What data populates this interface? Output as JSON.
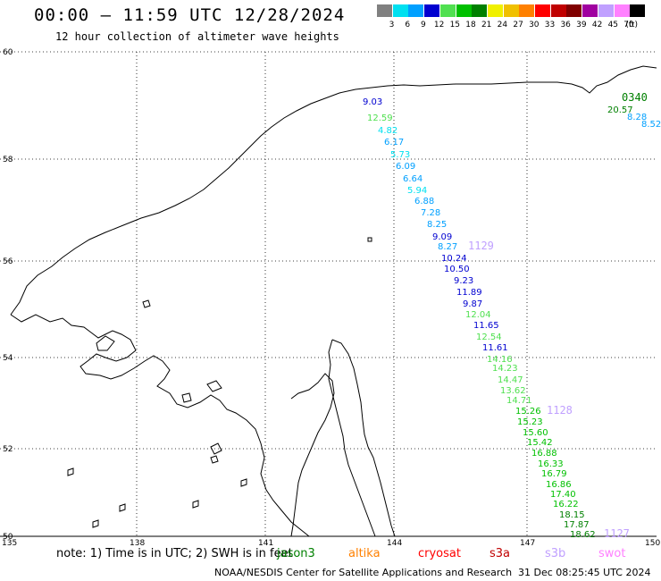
{
  "title": "00:00 — 11:59 UTC 12/28/2024",
  "subtitle": "12 hour collection of altimeter wave heights",
  "color_scale": {
    "unit": "(ft)",
    "bins": [
      {
        "label": "3",
        "color": "#808080"
      },
      {
        "label": "6",
        "color": "#00e0f0"
      },
      {
        "label": "9",
        "color": "#00a0ff"
      },
      {
        "label": "12",
        "color": "#0000d0"
      },
      {
        "label": "15",
        "color": "#50e050"
      },
      {
        "label": "18",
        "color": "#00c000"
      },
      {
        "label": "21",
        "color": "#008000"
      },
      {
        "label": "24",
        "color": "#f0f000"
      },
      {
        "label": "27",
        "color": "#f0c000"
      },
      {
        "label": "30",
        "color": "#ff8000"
      },
      {
        "label": "33",
        "color": "#ff0000"
      },
      {
        "label": "36",
        "color": "#c00000"
      },
      {
        "label": "39",
        "color": "#800000"
      },
      {
        "label": "42",
        "color": "#a000a0"
      },
      {
        "label": "45",
        "color": "#c0a0ff"
      },
      {
        "label": "70",
        "color": "#ff80ff"
      },
      {
        "label": "",
        "color": "#000000"
      }
    ]
  },
  "axes": {
    "lat_labels": [
      "60",
      "58",
      "56",
      "54",
      "52",
      "50"
    ],
    "lon_labels": [
      "135",
      "138",
      "141",
      "144",
      "147",
      "150"
    ]
  },
  "track_points": [
    {
      "v": "9.03",
      "c": "#0000d0"
    },
    {
      "v": "12.59",
      "c": "#50e050"
    },
    {
      "v": "4.82",
      "c": "#00e0f0"
    },
    {
      "v": "6.17",
      "c": "#00a0ff"
    },
    {
      "v": "5.73",
      "c": "#00e0f0"
    },
    {
      "v": "6.09",
      "c": "#00a0ff"
    },
    {
      "v": "6.64",
      "c": "#00a0ff"
    },
    {
      "v": "5.94",
      "c": "#00e0f0"
    },
    {
      "v": "6.88",
      "c": "#00a0ff"
    },
    {
      "v": "7.28",
      "c": "#00a0ff"
    },
    {
      "v": "8.25",
      "c": "#00a0ff"
    },
    {
      "v": "9.09",
      "c": "#0000d0"
    },
    {
      "v": "8.27",
      "c": "#00a0ff"
    },
    {
      "v": "10.24",
      "c": "#0000d0"
    },
    {
      "v": "10.50",
      "c": "#0000d0"
    },
    {
      "v": "9.23",
      "c": "#0000d0"
    },
    {
      "v": "11.89",
      "c": "#0000d0"
    },
    {
      "v": "9.87",
      "c": "#0000d0"
    },
    {
      "v": "12.04",
      "c": "#50e050"
    },
    {
      "v": "11.65",
      "c": "#0000d0"
    },
    {
      "v": "12.54",
      "c": "#50e050"
    },
    {
      "v": "11.61",
      "c": "#0000d0"
    },
    {
      "v": "14.16",
      "c": "#50e050"
    },
    {
      "v": "14.23",
      "c": "#50e050"
    },
    {
      "v": "14.47",
      "c": "#50e050"
    },
    {
      "v": "13.62",
      "c": "#50e050"
    },
    {
      "v": "14.71",
      "c": "#50e050"
    },
    {
      "v": "15.26",
      "c": "#00c000"
    },
    {
      "v": "15.23",
      "c": "#00c000"
    },
    {
      "v": "15.60",
      "c": "#00c000"
    },
    {
      "v": "15.42",
      "c": "#00c000"
    },
    {
      "v": "16.88",
      "c": "#00c000"
    },
    {
      "v": "16.33",
      "c": "#00c000"
    },
    {
      "v": "16.79",
      "c": "#00c000"
    },
    {
      "v": "16.86",
      "c": "#00c000"
    },
    {
      "v": "17.40",
      "c": "#00c000"
    },
    {
      "v": "16.22",
      "c": "#00c000"
    },
    {
      "v": "18.15",
      "c": "#008000"
    },
    {
      "v": "17.87",
      "c": "#008000"
    },
    {
      "v": "18.62",
      "c": "#008000"
    }
  ],
  "ne_points": [
    {
      "v": "20.57",
      "c": "#008000"
    },
    {
      "v": "8.28",
      "c": "#00a0ff"
    },
    {
      "v": "8.52",
      "c": "#00a0ff"
    }
  ],
  "pass_times": [
    {
      "v": "1129",
      "c": "#c0a0ff"
    },
    {
      "v": "1128",
      "c": "#c0a0ff"
    },
    {
      "v": "1127",
      "c": "#c0a0ff"
    },
    {
      "v": "0340",
      "c": "#008000"
    }
  ],
  "footer": {
    "note": "note:  1) Time is in UTC;  2) SWH is in feet",
    "satellites": [
      {
        "name": "jason3",
        "color": "#008000"
      },
      {
        "name": "altika",
        "color": "#ff8000"
      },
      {
        "name": "cryosat",
        "color": "#ff0000"
      },
      {
        "name": "s3a",
        "color": "#c00000"
      },
      {
        "name": "s3b",
        "color": "#c0a0ff"
      },
      {
        "name": "swot",
        "color": "#ff80ff"
      }
    ],
    "credit": "NOAA/NESDIS Center for Satellite Applications and Research",
    "timestamp": "31 Dec 08:25:45 UTC 2024"
  }
}
